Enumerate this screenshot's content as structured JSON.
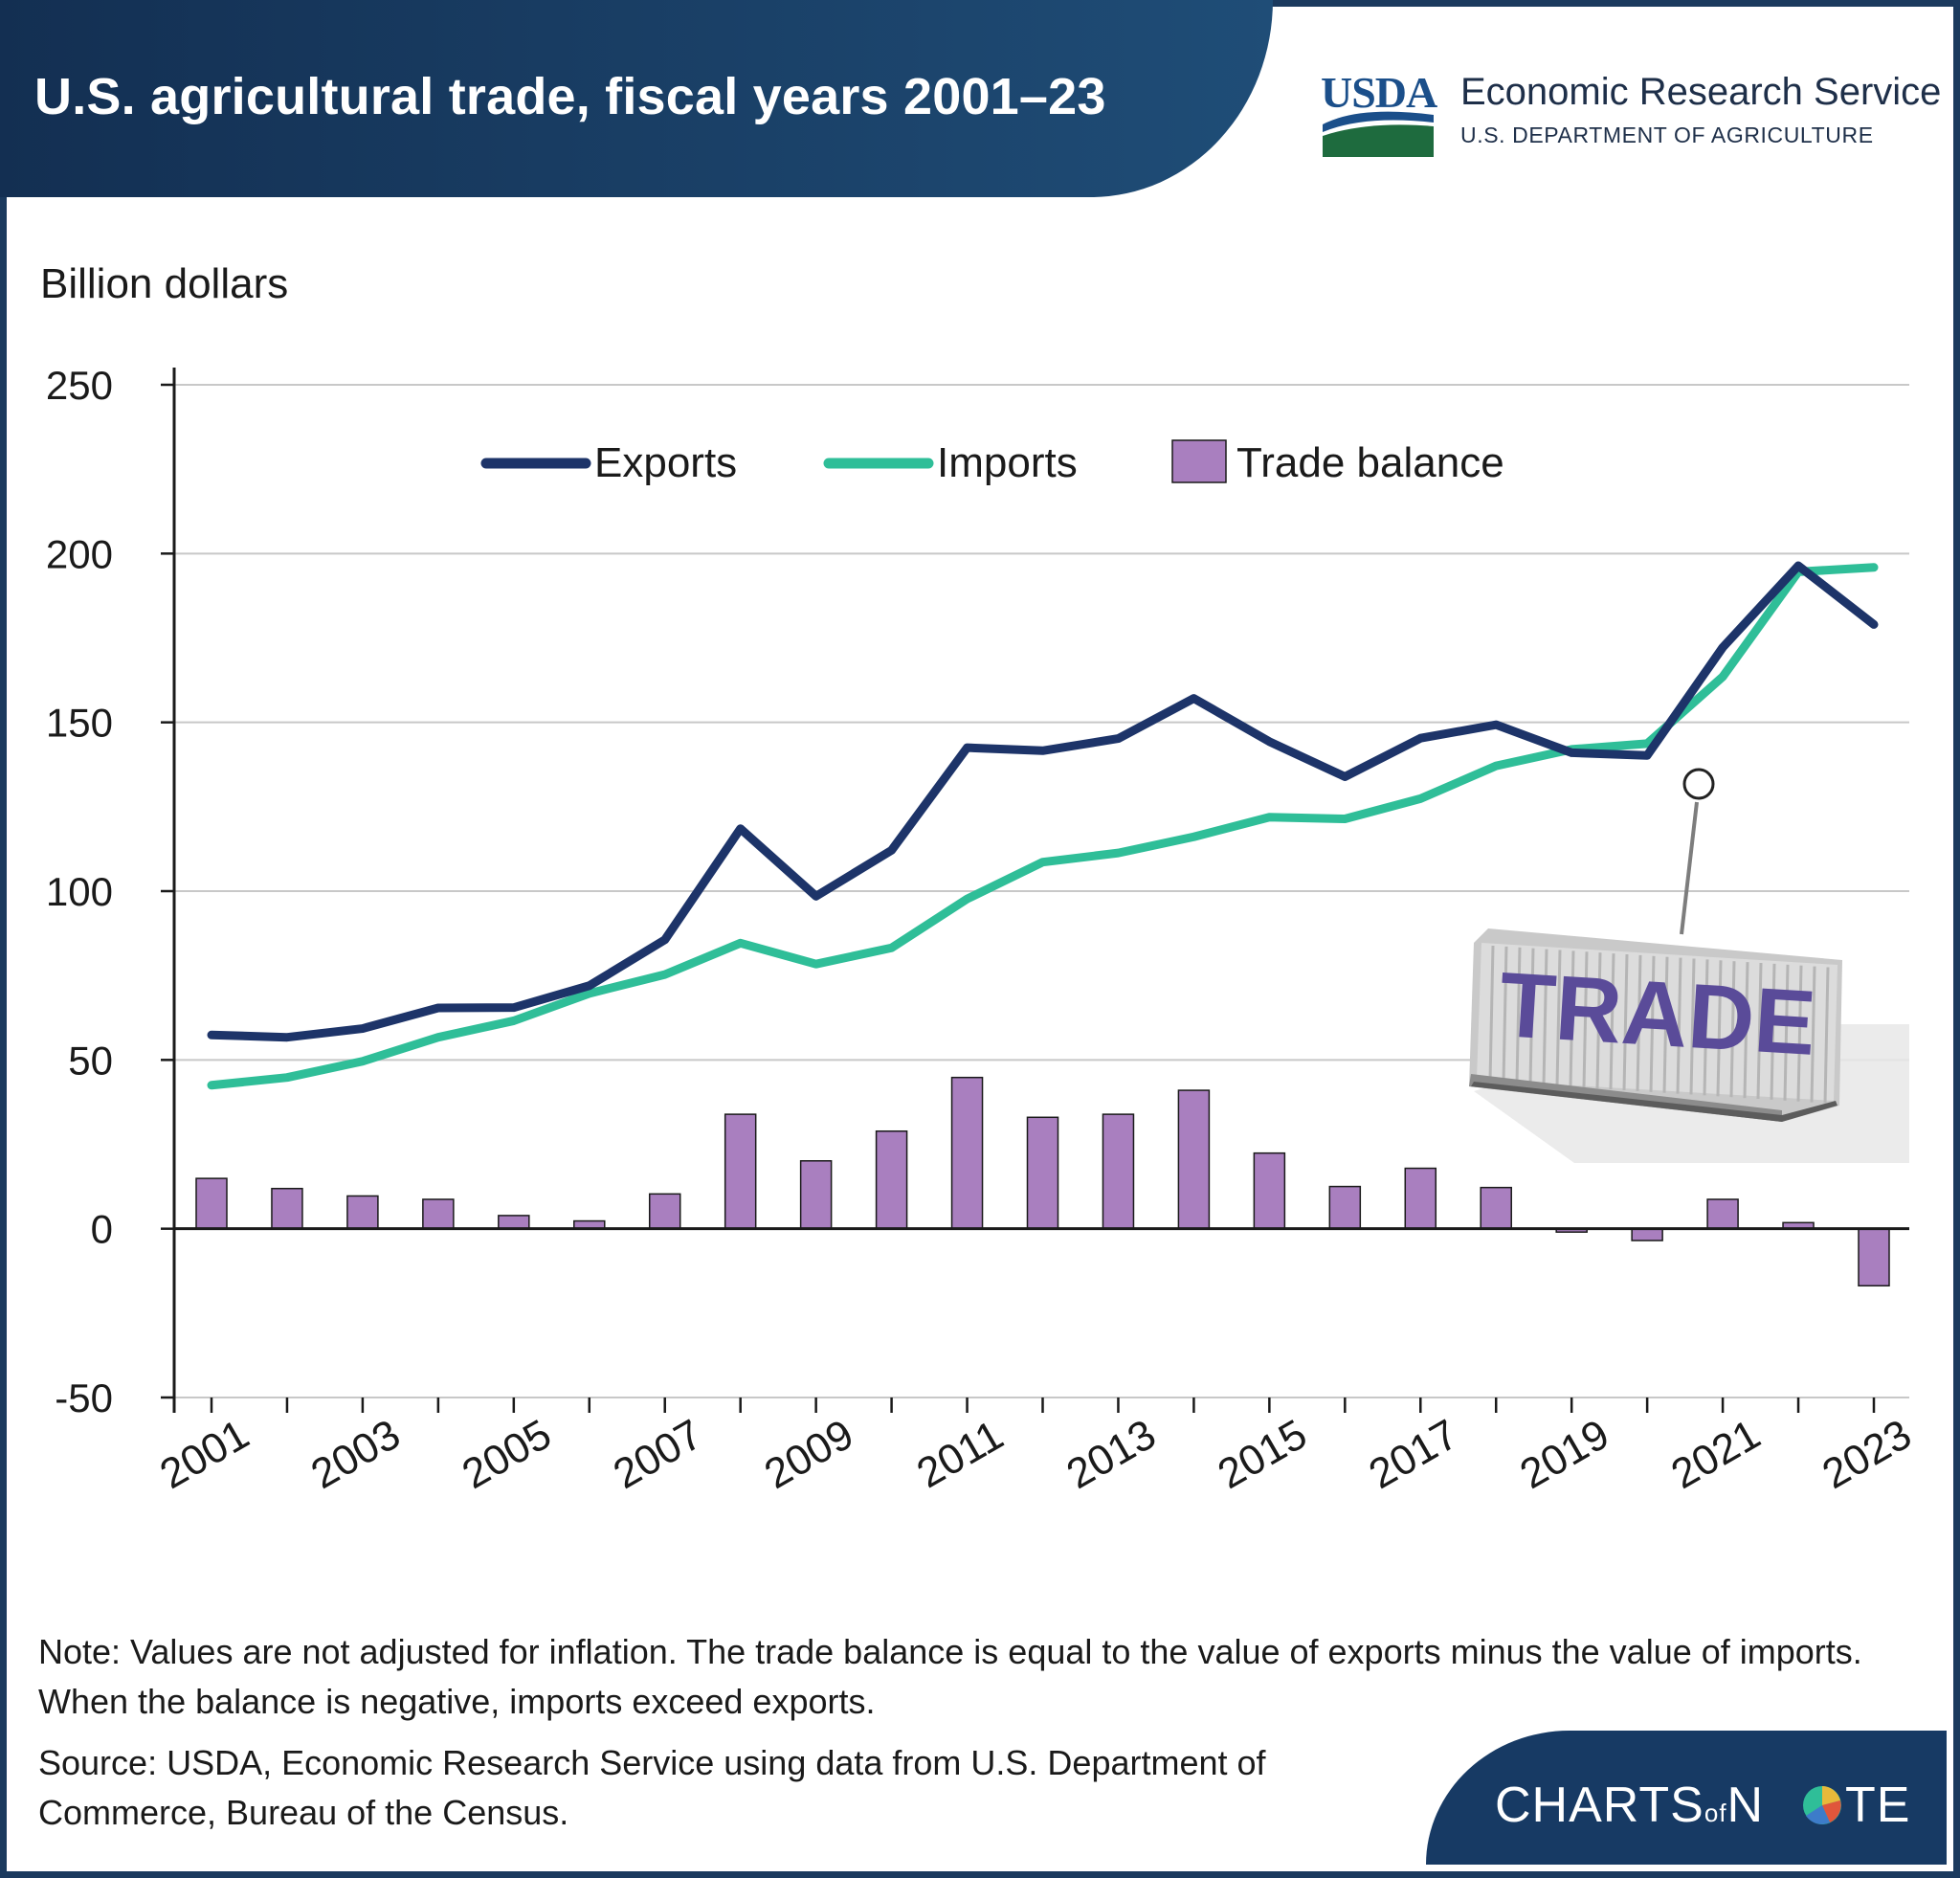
{
  "header": {
    "title": "U.S. agricultural trade, fiscal years 2001–23",
    "agency_logo_text": "USDA",
    "agency_name": "Economic Research Service",
    "agency_dept": "U.S. DEPARTMENT OF AGRICULTURE"
  },
  "illustration": {
    "container_text": "TRADE"
  },
  "footer": {
    "note": "Note: Values are not adjusted for inflation. The trade balance is equal to the value of exports minus the value of imports. When the balance is negative, imports exceed exports.",
    "source": "Source: USDA, Economic Research Service using data from U.S. Department of Commerce, Bureau of the Census.",
    "brand_part1": "CHARTS",
    "brand_part2": "of",
    "brand_part3": "N",
    "brand_part4": "TE"
  },
  "colors": {
    "exports": "#1d3469",
    "imports": "#2fbe98",
    "balance": "#a97fbf",
    "header": "#173a64"
  },
  "chart_data": {
    "type": "line",
    "title": "U.S. agricultural trade, fiscal years 2001–23",
    "ylabel": "Billion dollars",
    "xlabel": "",
    "ylim": [
      -50,
      250
    ],
    "yticks": [
      -50,
      0,
      50,
      100,
      150,
      200,
      250
    ],
    "grid": true,
    "legend_position": "top-center",
    "x": [
      2001,
      2002,
      2003,
      2004,
      2005,
      2006,
      2007,
      2008,
      2009,
      2010,
      2011,
      2012,
      2013,
      2014,
      2015,
      2016,
      2017,
      2018,
      2019,
      2020,
      2021,
      2022,
      2023
    ],
    "xtick_labels": [
      "2001",
      "2003",
      "2005",
      "2007",
      "2009",
      "2011",
      "2013",
      "2015",
      "2017",
      "2019",
      "2021",
      "2023"
    ],
    "series": [
      {
        "name": "Exports",
        "kind": "line",
        "values": [
          57.4,
          56.7,
          59.3,
          65.4,
          65.5,
          72.0,
          85.6,
          118.5,
          98.5,
          112.1,
          142.5,
          141.6,
          145.2,
          157.1,
          144.3,
          133.9,
          145.3,
          149.3,
          141.0,
          140.2,
          172.2,
          196.4,
          179.0
        ]
      },
      {
        "name": "Imports",
        "kind": "line",
        "values": [
          42.5,
          44.8,
          49.6,
          56.7,
          61.6,
          69.7,
          75.3,
          84.6,
          78.4,
          83.2,
          97.7,
          108.6,
          111.3,
          116.1,
          121.9,
          121.4,
          127.4,
          137.1,
          142.0,
          143.7,
          163.5,
          194.6,
          195.9
        ]
      },
      {
        "name": "Trade balance",
        "kind": "bar",
        "values": [
          14.9,
          11.9,
          9.7,
          8.7,
          3.9,
          2.3,
          10.3,
          33.9,
          20.1,
          28.9,
          44.8,
          33.0,
          33.9,
          41.0,
          22.4,
          12.5,
          17.9,
          12.2,
          -1.0,
          -3.5,
          8.7,
          1.8,
          -16.9
        ]
      }
    ]
  }
}
